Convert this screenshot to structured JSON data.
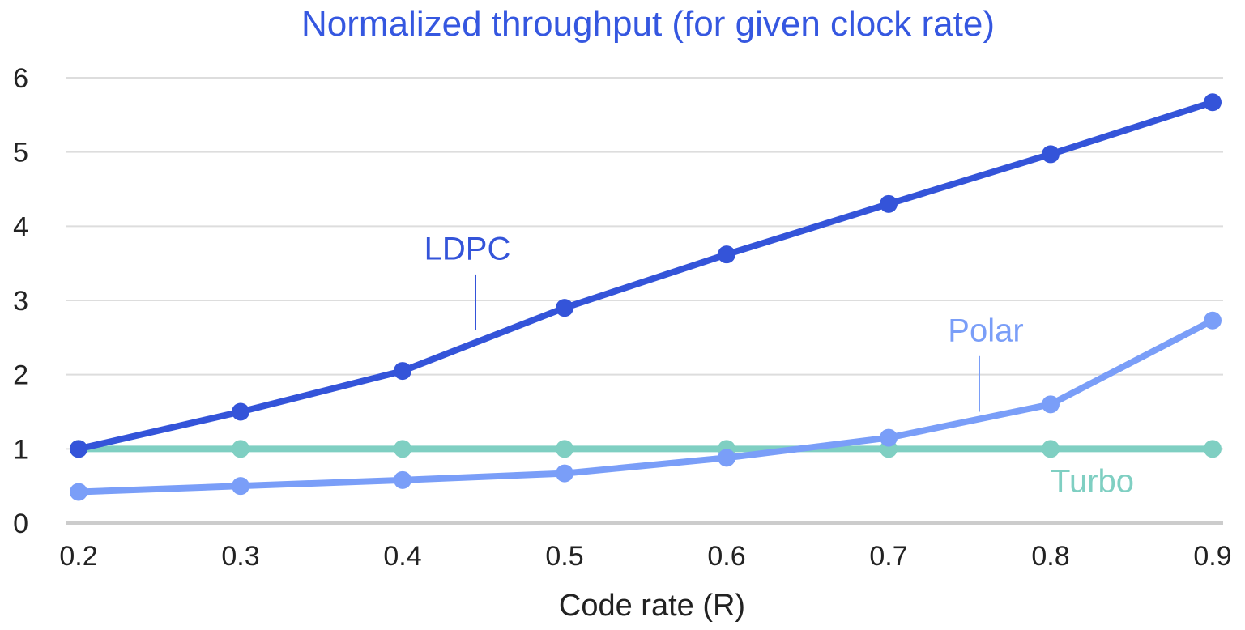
{
  "chart_data": {
    "type": "line",
    "title": "Normalized throughput (for given clock rate)",
    "xlabel": "Code rate (R)",
    "ylabel": "",
    "x": [
      0.2,
      0.3,
      0.4,
      0.5,
      0.6,
      0.7,
      0.8,
      0.9
    ],
    "x_tick_labels": [
      "0.2",
      "0.3",
      "0.4",
      "0.5",
      "0.6",
      "0.7",
      "0.8",
      "0.9"
    ],
    "y_tick_labels": [
      "0",
      "1",
      "2",
      "3",
      "4",
      "5",
      "6"
    ],
    "xlim": [
      0.2,
      0.9
    ],
    "ylim": [
      0,
      6
    ],
    "grid": true,
    "legend": "inline labels",
    "series": [
      {
        "name": "LDPC",
        "color": "#3454d9",
        "values": [
          1.0,
          1.5,
          2.05,
          2.9,
          3.62,
          4.3,
          4.97,
          5.67
        ]
      },
      {
        "name": "Polar",
        "color": "#7a9ef8",
        "values": [
          0.42,
          0.5,
          0.58,
          0.67,
          0.88,
          1.15,
          1.6,
          2.73
        ]
      },
      {
        "name": "Turbo",
        "color": "#7fcfc2",
        "values": [
          1.0,
          1.0,
          1.0,
          1.0,
          1.0,
          1.0,
          1.0,
          1.0
        ]
      }
    ]
  }
}
